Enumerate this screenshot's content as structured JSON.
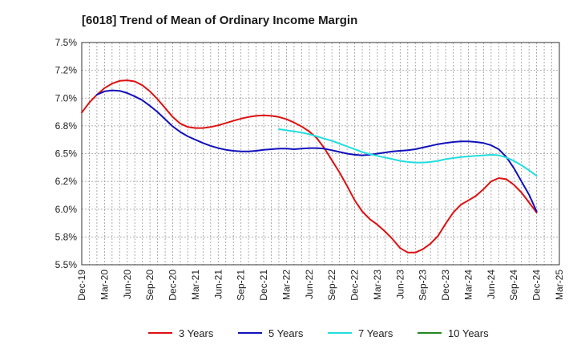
{
  "chart_data": {
    "type": "line",
    "title": "[6018]  Trend of Mean of Ordinary Income Margin",
    "xlabel": "",
    "ylabel": "",
    "x_ticks": [
      "Dec-19",
      "Mar-20",
      "Jun-20",
      "Sep-20",
      "Dec-20",
      "Mar-21",
      "Jun-21",
      "Sep-21",
      "Dec-21",
      "Mar-22",
      "Jun-22",
      "Sep-22",
      "Dec-22",
      "Mar-23",
      "Jun-23",
      "Sep-23",
      "Dec-23",
      "Mar-24",
      "Jun-24",
      "Sep-24",
      "Dec-24",
      "Mar-25"
    ],
    "y_ticks": [
      "5.5%",
      "5.8%",
      "6.0%",
      "6.2%",
      "6.5%",
      "6.8%",
      "7.0%",
      "7.2%",
      "7.5%"
    ],
    "y_tick_values": [
      5.5,
      5.75,
      6.0,
      6.25,
      6.5,
      6.75,
      7.0,
      7.25,
      7.5
    ],
    "ylim": [
      5.5,
      7.5
    ],
    "grid": true,
    "legend_position": "bottom",
    "series": [
      {
        "name": "3 Years",
        "color": "#dd1111",
        "points": [
          [
            "Dec-19",
            6.87
          ],
          [
            "Jan-20",
            6.96
          ],
          [
            "Feb-20",
            7.03
          ],
          [
            "Mar-20",
            7.09
          ],
          [
            "Apr-20",
            7.13
          ],
          [
            "May-20",
            7.155
          ],
          [
            "Jun-20",
            7.16
          ],
          [
            "Jul-20",
            7.15
          ],
          [
            "Aug-20",
            7.115
          ],
          [
            "Sep-20",
            7.06
          ],
          [
            "Oct-20",
            6.99
          ],
          [
            "Nov-20",
            6.91
          ],
          [
            "Dec-20",
            6.83
          ],
          [
            "Jan-21",
            6.77
          ],
          [
            "Feb-21",
            6.74
          ],
          [
            "Mar-21",
            6.73
          ],
          [
            "Apr-21",
            6.73
          ],
          [
            "May-21",
            6.74
          ],
          [
            "Jun-21",
            6.755
          ],
          [
            "Jul-21",
            6.775
          ],
          [
            "Aug-21",
            6.795
          ],
          [
            "Sep-21",
            6.815
          ],
          [
            "Oct-21",
            6.83
          ],
          [
            "Nov-21",
            6.84
          ],
          [
            "Dec-21",
            6.845
          ],
          [
            "Jan-22",
            6.84
          ],
          [
            "Feb-22",
            6.83
          ],
          [
            "Mar-22",
            6.81
          ],
          [
            "Apr-22",
            6.78
          ],
          [
            "May-22",
            6.745
          ],
          [
            "Jun-22",
            6.7
          ],
          [
            "Jul-22",
            6.64
          ],
          [
            "Aug-22",
            6.55
          ],
          [
            "Sep-22",
            6.44
          ],
          [
            "Oct-22",
            6.33
          ],
          [
            "Nov-22",
            6.21
          ],
          [
            "Dec-22",
            6.08
          ],
          [
            "Jan-23",
            5.98
          ],
          [
            "Feb-23",
            5.91
          ],
          [
            "Mar-23",
            5.86
          ],
          [
            "Apr-23",
            5.8
          ],
          [
            "May-23",
            5.73
          ],
          [
            "Jun-23",
            5.65
          ],
          [
            "Jul-23",
            5.61
          ],
          [
            "Aug-23",
            5.61
          ],
          [
            "Sep-23",
            5.64
          ],
          [
            "Oct-23",
            5.69
          ],
          [
            "Nov-23",
            5.76
          ],
          [
            "Dec-23",
            5.87
          ],
          [
            "Jan-24",
            5.97
          ],
          [
            "Feb-24",
            6.04
          ],
          [
            "Mar-24",
            6.08
          ],
          [
            "Apr-24",
            6.12
          ],
          [
            "May-24",
            6.18
          ],
          [
            "Jun-24",
            6.25
          ],
          [
            "Jul-24",
            6.28
          ],
          [
            "Aug-24",
            6.27
          ],
          [
            "Sep-24",
            6.22
          ],
          [
            "Oct-24",
            6.15
          ],
          [
            "Nov-24",
            6.06
          ],
          [
            "Dec-24",
            5.97
          ]
        ]
      },
      {
        "name": "5 Years",
        "color": "#1111bb",
        "points": [
          [
            "Feb-20",
            7.03
          ],
          [
            "Mar-20",
            7.06
          ],
          [
            "Apr-20",
            7.07
          ],
          [
            "May-20",
            7.065
          ],
          [
            "Jun-20",
            7.045
          ],
          [
            "Jul-20",
            7.015
          ],
          [
            "Aug-20",
            6.98
          ],
          [
            "Sep-20",
            6.93
          ],
          [
            "Oct-20",
            6.875
          ],
          [
            "Nov-20",
            6.81
          ],
          [
            "Dec-20",
            6.745
          ],
          [
            "Jan-21",
            6.695
          ],
          [
            "Feb-21",
            6.655
          ],
          [
            "Mar-21",
            6.625
          ],
          [
            "Apr-21",
            6.595
          ],
          [
            "May-21",
            6.57
          ],
          [
            "Jun-21",
            6.55
          ],
          [
            "Jul-21",
            6.535
          ],
          [
            "Aug-21",
            6.525
          ],
          [
            "Sep-21",
            6.52
          ],
          [
            "Oct-21",
            6.52
          ],
          [
            "Nov-21",
            6.525
          ],
          [
            "Dec-21",
            6.535
          ],
          [
            "Jan-22",
            6.54
          ],
          [
            "Feb-22",
            6.545
          ],
          [
            "Mar-22",
            6.545
          ],
          [
            "Apr-22",
            6.54
          ],
          [
            "May-22",
            6.545
          ],
          [
            "Jun-22",
            6.55
          ],
          [
            "Jul-22",
            6.55
          ],
          [
            "Aug-22",
            6.545
          ],
          [
            "Sep-22",
            6.53
          ],
          [
            "Oct-22",
            6.515
          ],
          [
            "Nov-22",
            6.5
          ],
          [
            "Dec-22",
            6.49
          ],
          [
            "Jan-23",
            6.485
          ],
          [
            "Feb-23",
            6.49
          ],
          [
            "Mar-23",
            6.5
          ],
          [
            "Apr-23",
            6.51
          ],
          [
            "May-23",
            6.52
          ],
          [
            "Jun-23",
            6.525
          ],
          [
            "Jul-23",
            6.53
          ],
          [
            "Aug-23",
            6.54
          ],
          [
            "Sep-23",
            6.555
          ],
          [
            "Oct-23",
            6.57
          ],
          [
            "Nov-23",
            6.585
          ],
          [
            "Dec-23",
            6.595
          ],
          [
            "Jan-24",
            6.605
          ],
          [
            "Feb-24",
            6.61
          ],
          [
            "Mar-24",
            6.61
          ],
          [
            "Apr-24",
            6.605
          ],
          [
            "May-24",
            6.595
          ],
          [
            "Jun-24",
            6.575
          ],
          [
            "Jul-24",
            6.54
          ],
          [
            "Aug-24",
            6.47
          ],
          [
            "Sep-24",
            6.37
          ],
          [
            "Oct-24",
            6.25
          ],
          [
            "Nov-24",
            6.13
          ],
          [
            "Dec-24",
            5.98
          ]
        ]
      },
      {
        "name": "7 Years",
        "color": "#22dddd",
        "points": [
          [
            "Feb-22",
            6.72
          ],
          [
            "Mar-22",
            6.71
          ],
          [
            "Apr-22",
            6.7
          ],
          [
            "May-22",
            6.69
          ],
          [
            "Jun-22",
            6.675
          ],
          [
            "Jul-22",
            6.655
          ],
          [
            "Aug-22",
            6.635
          ],
          [
            "Sep-22",
            6.615
          ],
          [
            "Oct-22",
            6.59
          ],
          [
            "Nov-22",
            6.565
          ],
          [
            "Dec-22",
            6.54
          ],
          [
            "Jan-23",
            6.515
          ],
          [
            "Feb-23",
            6.495
          ],
          [
            "Mar-23",
            6.48
          ],
          [
            "Apr-23",
            6.465
          ],
          [
            "May-23",
            6.45
          ],
          [
            "Jun-23",
            6.435
          ],
          [
            "Jul-23",
            6.425
          ],
          [
            "Aug-23",
            6.42
          ],
          [
            "Sep-23",
            6.42
          ],
          [
            "Oct-23",
            6.425
          ],
          [
            "Nov-23",
            6.435
          ],
          [
            "Dec-23",
            6.45
          ],
          [
            "Jan-24",
            6.46
          ],
          [
            "Feb-24",
            6.47
          ],
          [
            "Mar-24",
            6.475
          ],
          [
            "Apr-24",
            6.48
          ],
          [
            "May-24",
            6.485
          ],
          [
            "Jun-24",
            6.49
          ],
          [
            "Jul-24",
            6.485
          ],
          [
            "Aug-24",
            6.465
          ],
          [
            "Sep-24",
            6.435
          ],
          [
            "Oct-24",
            6.395
          ],
          [
            "Nov-24",
            6.35
          ],
          [
            "Dec-24",
            6.3
          ]
        ]
      },
      {
        "name": "10 Years",
        "color": "#228822",
        "points": []
      }
    ]
  }
}
